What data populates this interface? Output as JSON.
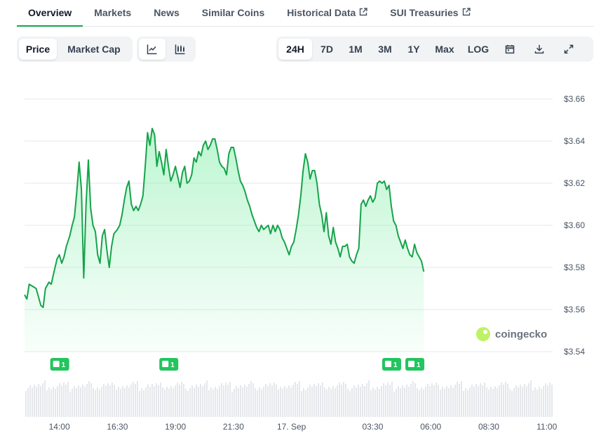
{
  "tabs": [
    {
      "label": "Overview",
      "external": false,
      "active": true
    },
    {
      "label": "Markets",
      "external": false
    },
    {
      "label": "News",
      "external": false
    },
    {
      "label": "Similar Coins",
      "external": false
    },
    {
      "label": "Historical Data",
      "external": true
    },
    {
      "label": "SUI Treasuries",
      "external": true
    }
  ],
  "metric_toggle": {
    "price": "Price",
    "market_cap": "Market Cap",
    "selected": "Price"
  },
  "chart_style": {
    "line_icon": "line-chart-icon",
    "candle_icon": "candlestick-icon",
    "selected": "line"
  },
  "ranges": [
    "24H",
    "7D",
    "1M",
    "3M",
    "1Y",
    "Max",
    "LOG"
  ],
  "selected_range": "24H",
  "tool_icons": [
    "calendar-icon",
    "download-icon",
    "expand-icon"
  ],
  "watermark": "coingecko",
  "colors": {
    "line": "#16a34a",
    "fill_top": "#86efac",
    "badge": "#22c55e",
    "volume": "#e5e7eb"
  },
  "chart_data": {
    "type": "area",
    "title": "",
    "xlabel": "",
    "ylabel": "",
    "ylim": [
      3.53,
      3.67
    ],
    "y_ticks": [
      "$3.66",
      "$3.64",
      "$3.62",
      "$3.60",
      "$3.58",
      "$3.56",
      "$3.54"
    ],
    "y_tick_values": [
      3.66,
      3.64,
      3.62,
      3.6,
      3.58,
      3.56,
      3.54
    ],
    "x_range": [
      12.5,
      35.25
    ],
    "x_ticks": [
      {
        "t": 14.0,
        "label": "14:00"
      },
      {
        "t": 16.5,
        "label": "16:30"
      },
      {
        "t": 19.0,
        "label": "19:00"
      },
      {
        "t": 21.5,
        "label": "21:30"
      },
      {
        "t": 24.0,
        "label": "17. Sep"
      },
      {
        "t": 27.5,
        "label": "03:30"
      },
      {
        "t": 30.0,
        "label": "06:00"
      },
      {
        "t": 32.5,
        "label": "08:30"
      },
      {
        "t": 35.0,
        "label": "11:00"
      }
    ],
    "grid": true,
    "series": [
      {
        "values": [
          [
            12.5,
            3.567
          ],
          [
            12.6,
            3.565
          ],
          [
            12.7,
            3.572
          ],
          [
            12.85,
            3.571
          ],
          [
            13.0,
            3.57
          ],
          [
            13.1,
            3.566
          ],
          [
            13.2,
            3.562
          ],
          [
            13.3,
            3.561
          ],
          [
            13.4,
            3.57
          ],
          [
            13.55,
            3.573
          ],
          [
            13.65,
            3.572
          ],
          [
            13.75,
            3.577
          ],
          [
            13.9,
            3.584
          ],
          [
            14.0,
            3.586
          ],
          [
            14.1,
            3.582
          ],
          [
            14.2,
            3.585
          ],
          [
            14.3,
            3.59
          ],
          [
            14.45,
            3.595
          ],
          [
            14.55,
            3.6
          ],
          [
            14.65,
            3.604
          ],
          [
            14.75,
            3.616
          ],
          [
            14.85,
            3.63
          ],
          [
            14.95,
            3.617
          ],
          [
            15.05,
            3.575
          ],
          [
            15.15,
            3.61
          ],
          [
            15.25,
            3.631
          ],
          [
            15.35,
            3.608
          ],
          [
            15.45,
            3.6
          ],
          [
            15.55,
            3.597
          ],
          [
            15.65,
            3.586
          ],
          [
            15.75,
            3.582
          ],
          [
            15.85,
            3.595
          ],
          [
            15.95,
            3.598
          ],
          [
            16.05,
            3.588
          ],
          [
            16.15,
            3.58
          ],
          [
            16.25,
            3.59
          ],
          [
            16.35,
            3.596
          ],
          [
            16.5,
            3.598
          ],
          [
            16.6,
            3.6
          ],
          [
            16.7,
            3.605
          ],
          [
            16.8,
            3.612
          ],
          [
            16.9,
            3.618
          ],
          [
            17.0,
            3.621
          ],
          [
            17.1,
            3.61
          ],
          [
            17.2,
            3.607
          ],
          [
            17.3,
            3.609
          ],
          [
            17.4,
            3.607
          ],
          [
            17.5,
            3.61
          ],
          [
            17.6,
            3.614
          ],
          [
            17.7,
            3.628
          ],
          [
            17.8,
            3.644
          ],
          [
            17.9,
            3.638
          ],
          [
            18.0,
            3.646
          ],
          [
            18.1,
            3.643
          ],
          [
            18.2,
            3.628
          ],
          [
            18.3,
            3.635
          ],
          [
            18.4,
            3.63
          ],
          [
            18.5,
            3.624
          ],
          [
            18.6,
            3.636
          ],
          [
            18.7,
            3.628
          ],
          [
            18.8,
            3.621
          ],
          [
            18.9,
            3.624
          ],
          [
            19.0,
            3.628
          ],
          [
            19.1,
            3.623
          ],
          [
            19.2,
            3.618
          ],
          [
            19.3,
            3.625
          ],
          [
            19.4,
            3.628
          ],
          [
            19.5,
            3.62
          ],
          [
            19.6,
            3.621
          ],
          [
            19.7,
            3.624
          ],
          [
            19.8,
            3.632
          ],
          [
            19.9,
            3.63
          ],
          [
            20.0,
            3.635
          ],
          [
            20.1,
            3.633
          ],
          [
            20.2,
            3.638
          ],
          [
            20.3,
            3.64
          ],
          [
            20.4,
            3.636
          ],
          [
            20.5,
            3.638
          ],
          [
            20.6,
            3.641
          ],
          [
            20.7,
            3.641
          ],
          [
            20.8,
            3.636
          ],
          [
            20.9,
            3.63
          ],
          [
            21.0,
            3.628
          ],
          [
            21.1,
            3.627
          ],
          [
            21.2,
            3.624
          ],
          [
            21.3,
            3.634
          ],
          [
            21.4,
            3.637
          ],
          [
            21.5,
            3.637
          ],
          [
            21.6,
            3.632
          ],
          [
            21.7,
            3.626
          ],
          [
            21.8,
            3.621
          ],
          [
            21.9,
            3.619
          ],
          [
            22.0,
            3.616
          ],
          [
            22.1,
            3.612
          ],
          [
            22.2,
            3.609
          ],
          [
            22.3,
            3.605
          ],
          [
            22.4,
            3.602
          ],
          [
            22.5,
            3.599
          ],
          [
            22.6,
            3.597
          ],
          [
            22.7,
            3.6
          ],
          [
            22.8,
            3.598
          ],
          [
            22.9,
            3.599
          ],
          [
            23.0,
            3.6
          ],
          [
            23.1,
            3.596
          ],
          [
            23.2,
            3.6
          ],
          [
            23.3,
            3.597
          ],
          [
            23.4,
            3.6
          ],
          [
            23.5,
            3.598
          ],
          [
            23.6,
            3.594
          ],
          [
            23.7,
            3.592
          ],
          [
            23.8,
            3.589
          ],
          [
            23.9,
            3.586
          ],
          [
            24.0,
            3.59
          ],
          [
            24.1,
            3.592
          ],
          [
            24.2,
            3.598
          ],
          [
            24.3,
            3.605
          ],
          [
            24.4,
            3.614
          ],
          [
            24.5,
            3.626
          ],
          [
            24.6,
            3.634
          ],
          [
            24.7,
            3.63
          ],
          [
            24.8,
            3.622
          ],
          [
            24.9,
            3.626
          ],
          [
            25.0,
            3.626
          ],
          [
            25.1,
            3.62
          ],
          [
            25.2,
            3.61
          ],
          [
            25.3,
            3.605
          ],
          [
            25.4,
            3.597
          ],
          [
            25.5,
            3.606
          ],
          [
            25.6,
            3.595
          ],
          [
            25.7,
            3.591
          ],
          [
            25.8,
            3.599
          ],
          [
            25.9,
            3.592
          ],
          [
            26.0,
            3.589
          ],
          [
            26.1,
            3.585
          ],
          [
            26.2,
            3.59
          ],
          [
            26.3,
            3.59
          ],
          [
            26.4,
            3.591
          ],
          [
            26.5,
            3.585
          ],
          [
            26.6,
            3.583
          ],
          [
            26.7,
            3.582
          ],
          [
            26.8,
            3.586
          ],
          [
            26.9,
            3.589
          ],
          [
            27.0,
            3.61
          ],
          [
            27.1,
            3.612
          ],
          [
            27.2,
            3.609
          ],
          [
            27.3,
            3.612
          ],
          [
            27.4,
            3.614
          ],
          [
            27.5,
            3.611
          ],
          [
            27.6,
            3.613
          ],
          [
            27.7,
            3.62
          ],
          [
            27.8,
            3.621
          ],
          [
            27.9,
            3.62
          ],
          [
            28.0,
            3.621
          ],
          [
            28.1,
            3.617
          ],
          [
            28.2,
            3.619
          ],
          [
            28.3,
            3.609
          ],
          [
            28.4,
            3.602
          ],
          [
            28.5,
            3.6
          ],
          [
            28.6,
            3.595
          ],
          [
            28.7,
            3.592
          ],
          [
            28.8,
            3.589
          ],
          [
            28.9,
            3.593
          ],
          [
            29.0,
            3.589
          ],
          [
            29.1,
            3.586
          ],
          [
            29.2,
            3.585
          ],
          [
            29.3,
            3.591
          ],
          [
            29.4,
            3.587
          ],
          [
            29.5,
            3.585
          ],
          [
            29.6,
            3.583
          ],
          [
            29.7,
            3.578
          ]
        ]
      }
    ],
    "news_markers": [
      {
        "t": 14.0,
        "count": "1"
      },
      {
        "t": 18.7,
        "count": "1"
      },
      {
        "t": 28.3,
        "count": "1"
      },
      {
        "t": 29.3,
        "count": "1"
      }
    ]
  }
}
